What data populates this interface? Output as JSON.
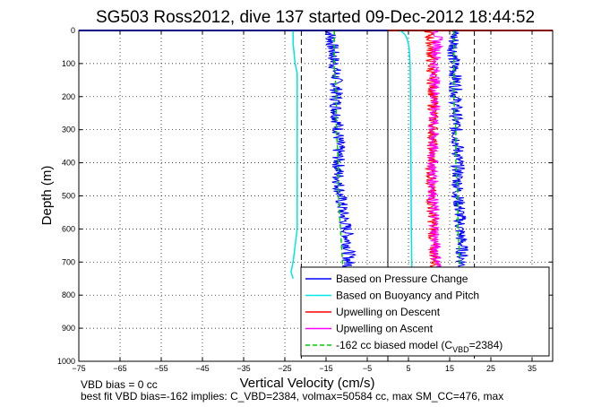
{
  "chart_data": {
    "type": "line",
    "title": "SG503 Ross2012, dive 137 started 09-Dec-2012 18:44:52",
    "xlabel": "Vertical Velocity (cm/s)",
    "ylabel": "Depth (m)",
    "xlim": [
      -75,
      40
    ],
    "ylim": [
      0,
      1000
    ],
    "y_reversed": true,
    "grid": true,
    "xticks": [
      -75,
      -65,
      -55,
      -45,
      -35,
      -25,
      -15,
      -5,
      5,
      15,
      25,
      35
    ],
    "yticks": [
      0,
      100,
      200,
      300,
      400,
      500,
      600,
      700,
      800,
      900,
      1000
    ],
    "ref_lines": {
      "dashed": [
        -21,
        21
      ],
      "solid": [
        0
      ]
    },
    "legend_location": "bottom-right",
    "series": [
      {
        "name": "Based on Pressure Change",
        "color": "#0000ff",
        "branch": "descent",
        "depth": [
          0,
          50,
          100,
          150,
          200,
          250,
          300,
          350,
          400,
          450,
          500,
          550,
          600,
          650,
          700,
          750
        ],
        "w": [
          -14,
          -13.5,
          -13,
          -12.5,
          -12.5,
          -12.5,
          -12,
          -12,
          -12,
          -12,
          -11.5,
          -11,
          -10,
          -9.5,
          -9.5,
          -9.5
        ]
      },
      {
        "name": "Based on Pressure Change",
        "color": "#0000ff",
        "branch": "ascent",
        "depth": [
          0,
          50,
          100,
          150,
          200,
          250,
          300,
          350,
          400,
          450,
          500,
          550,
          600,
          650,
          700,
          750
        ],
        "w": [
          16,
          16,
          16,
          16.5,
          16.5,
          16.5,
          16.5,
          17,
          17,
          17,
          17,
          17.5,
          17.5,
          18,
          18,
          18
        ]
      },
      {
        "name": "Based on Buoyancy and Pitch",
        "color": "#00e5e5",
        "branch": "descent",
        "depth": [
          0,
          40,
          100,
          130,
          200,
          300,
          400,
          500,
          600,
          650,
          700,
          730,
          750
        ],
        "w": [
          -23,
          -23,
          -22.5,
          -22,
          -22,
          -22,
          -22,
          -22,
          -22,
          -22.5,
          -23,
          -23.5,
          -23
        ]
      },
      {
        "name": "Based on Buoyancy and Pitch",
        "color": "#00e5e5",
        "branch": "ascent",
        "depth": [
          0,
          10,
          20,
          40,
          60,
          100,
          200,
          400,
          600,
          700,
          750
        ],
        "w": [
          3,
          4,
          4.5,
          5,
          5.2,
          5.4,
          5.5,
          5.6,
          5.7,
          5.8,
          5.8
        ]
      },
      {
        "name": "Upwelling on Descent",
        "color": "#ff0000",
        "depth": [
          0,
          50,
          100,
          200,
          300,
          400,
          500,
          600,
          650,
          700,
          750
        ],
        "w": [
          10,
          10.5,
          10.5,
          11,
          11,
          10.5,
          10.5,
          11,
          11,
          11.5,
          11.5
        ]
      },
      {
        "name": "Upwelling on Ascent",
        "color": "#ff00ff",
        "depth": [
          0,
          50,
          100,
          200,
          300,
          400,
          500,
          600,
          650,
          700,
          750
        ],
        "w": [
          12,
          12,
          11.5,
          11.5,
          11,
          11,
          11,
          11.5,
          11.5,
          12,
          12
        ]
      },
      {
        "name": "-162 cc biased model (C",
        "color": "#00cc00",
        "style": "dashed",
        "branch": "descent",
        "depth": [
          0,
          100,
          200,
          300,
          400,
          500,
          600,
          700,
          750
        ],
        "w": [
          -13,
          -13,
          -12.5,
          -12.5,
          -12,
          -12,
          -11.5,
          -11,
          -11
        ]
      },
      {
        "name": "-162 cc biased model (C",
        "color": "#00cc00",
        "style": "dashed",
        "branch": "ascent",
        "depth": [
          0,
          100,
          200,
          300,
          400,
          500,
          600,
          700,
          750
        ],
        "w": [
          16,
          16,
          16,
          16.5,
          16.5,
          17,
          17,
          17.5,
          17.5
        ]
      }
    ],
    "surface_line": {
      "descent_color": "#0000ff",
      "ascent_color": "#ff0000",
      "depth": 0
    },
    "legend": [
      {
        "label": "Based on Pressure Change",
        "color": "#0000ff",
        "style": "solid"
      },
      {
        "label": "Based on Buoyancy and Pitch",
        "color": "#00e5e5",
        "style": "solid"
      },
      {
        "label": "Upwelling on Descent",
        "color": "#ff0000",
        "style": "solid"
      },
      {
        "label": "Upwelling on Ascent",
        "color": "#ff00ff",
        "style": "solid"
      },
      {
        "label": "-162 cc biased model (C",
        "sub": "VBD",
        "tail": "=2384)",
        "color": "#00cc00",
        "style": "dashed"
      }
    ]
  },
  "footer": {
    "line1": "VBD bias = 0 cc",
    "line2": "best fit VBD bias=-162 implies: C_VBD=2384, volmax=50584 cc, max SM_CC=476, max"
  }
}
